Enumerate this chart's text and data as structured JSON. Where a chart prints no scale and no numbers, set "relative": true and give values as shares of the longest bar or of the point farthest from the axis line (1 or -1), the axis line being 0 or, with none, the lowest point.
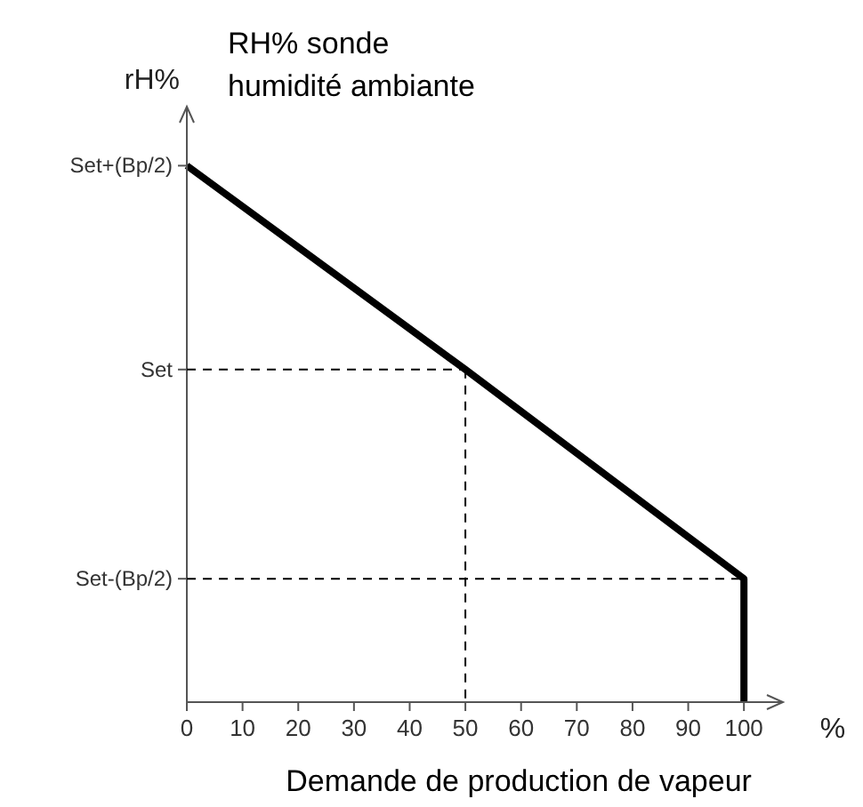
{
  "chart_data": {
    "type": "line",
    "title": "RH% sonde\nhumidité ambiante",
    "ylabel": "rH%",
    "xlabel": "Demande de production de vapeur",
    "relative": true,
    "annotations": [
      "%",
      {
        "text": "Set-(Bp/2)",
        "x": 100,
        "y": 0.23
      },
      {
        "text": "Set",
        "x": 50,
        "y": 0.62
      },
      {
        "text": "Set+(Bp/2)",
        "x": 0,
        "y": 1
      }
    ],
    "xlim": [
      0,
      107
    ],
    "xticks": [
      0,
      10,
      20,
      30,
      40,
      50,
      60,
      70,
      80,
      90,
      100
    ],
    "series": [
      {
        "color": "#000000",
        "line_style": "solid",
        "x": [
          0,
          50,
          100,
          100
        ],
        "values": [
          1,
          0.62,
          0.23,
          0
        ]
      },
      {
        "color": "#000000",
        "line_style": "dashed",
        "x": [
          50,
          50
        ],
        "values": [
          0.62,
          0
        ]
      }
    ]
  }
}
